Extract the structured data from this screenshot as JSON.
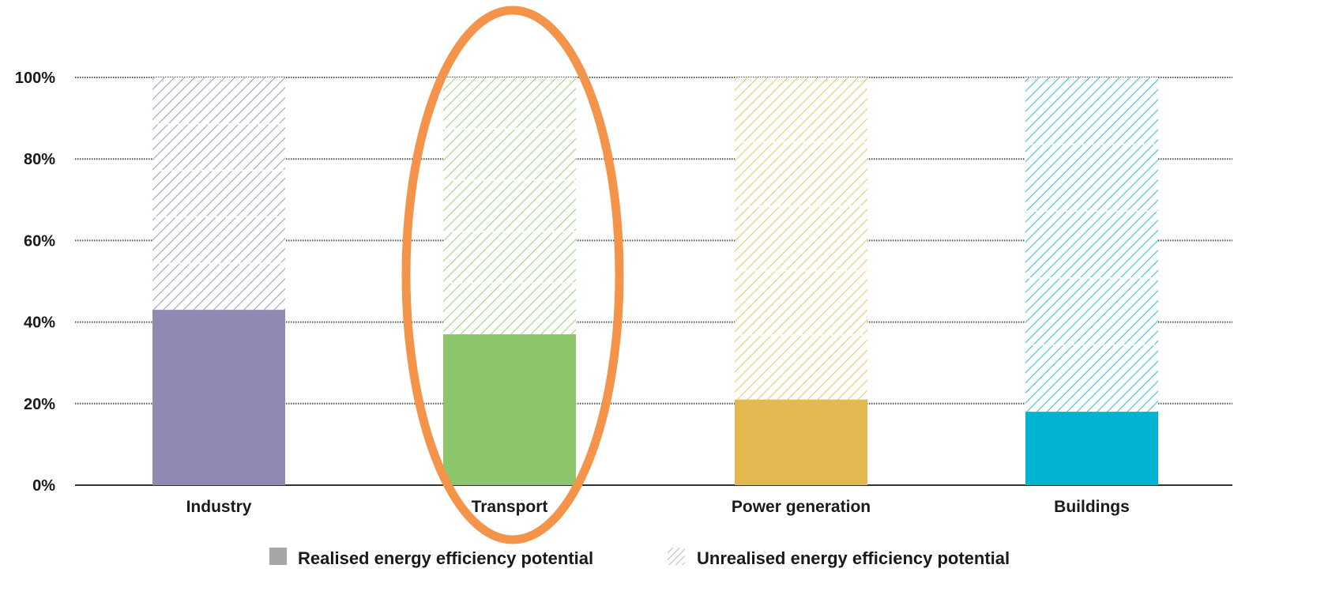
{
  "chart_data": {
    "type": "bar",
    "stacked": true,
    "categories": [
      "Industry",
      "Transport",
      "Power generation",
      "Buildings"
    ],
    "series": [
      {
        "name": "Realised energy efficiency potential",
        "values": [
          43,
          37,
          21,
          18
        ],
        "style": "solid"
      },
      {
        "name": "Unrealised energy efficiency potential",
        "values": [
          57,
          63,
          79,
          82
        ],
        "style": "hatched"
      }
    ],
    "category_colors": {
      "solid": [
        "#9289b3",
        "#8dc66a",
        "#e3b84f",
        "#00b3d1"
      ],
      "hatch": [
        "#a79fc4",
        "#a2d37e",
        "#f0c86a",
        "#3cc2dc"
      ]
    },
    "y_ticks": [
      "0%",
      "20%",
      "40%",
      "60%",
      "80%",
      "100%"
    ],
    "ylim": [
      0,
      100
    ],
    "grid": true,
    "legend_position": "bottom",
    "legend_swatch_colors": {
      "solid": "#a6a6a6",
      "hatch": "#a6a6a6"
    },
    "annotation": {
      "type": "ellipse",
      "target_category": "Transport",
      "color": "#f4944a"
    }
  }
}
